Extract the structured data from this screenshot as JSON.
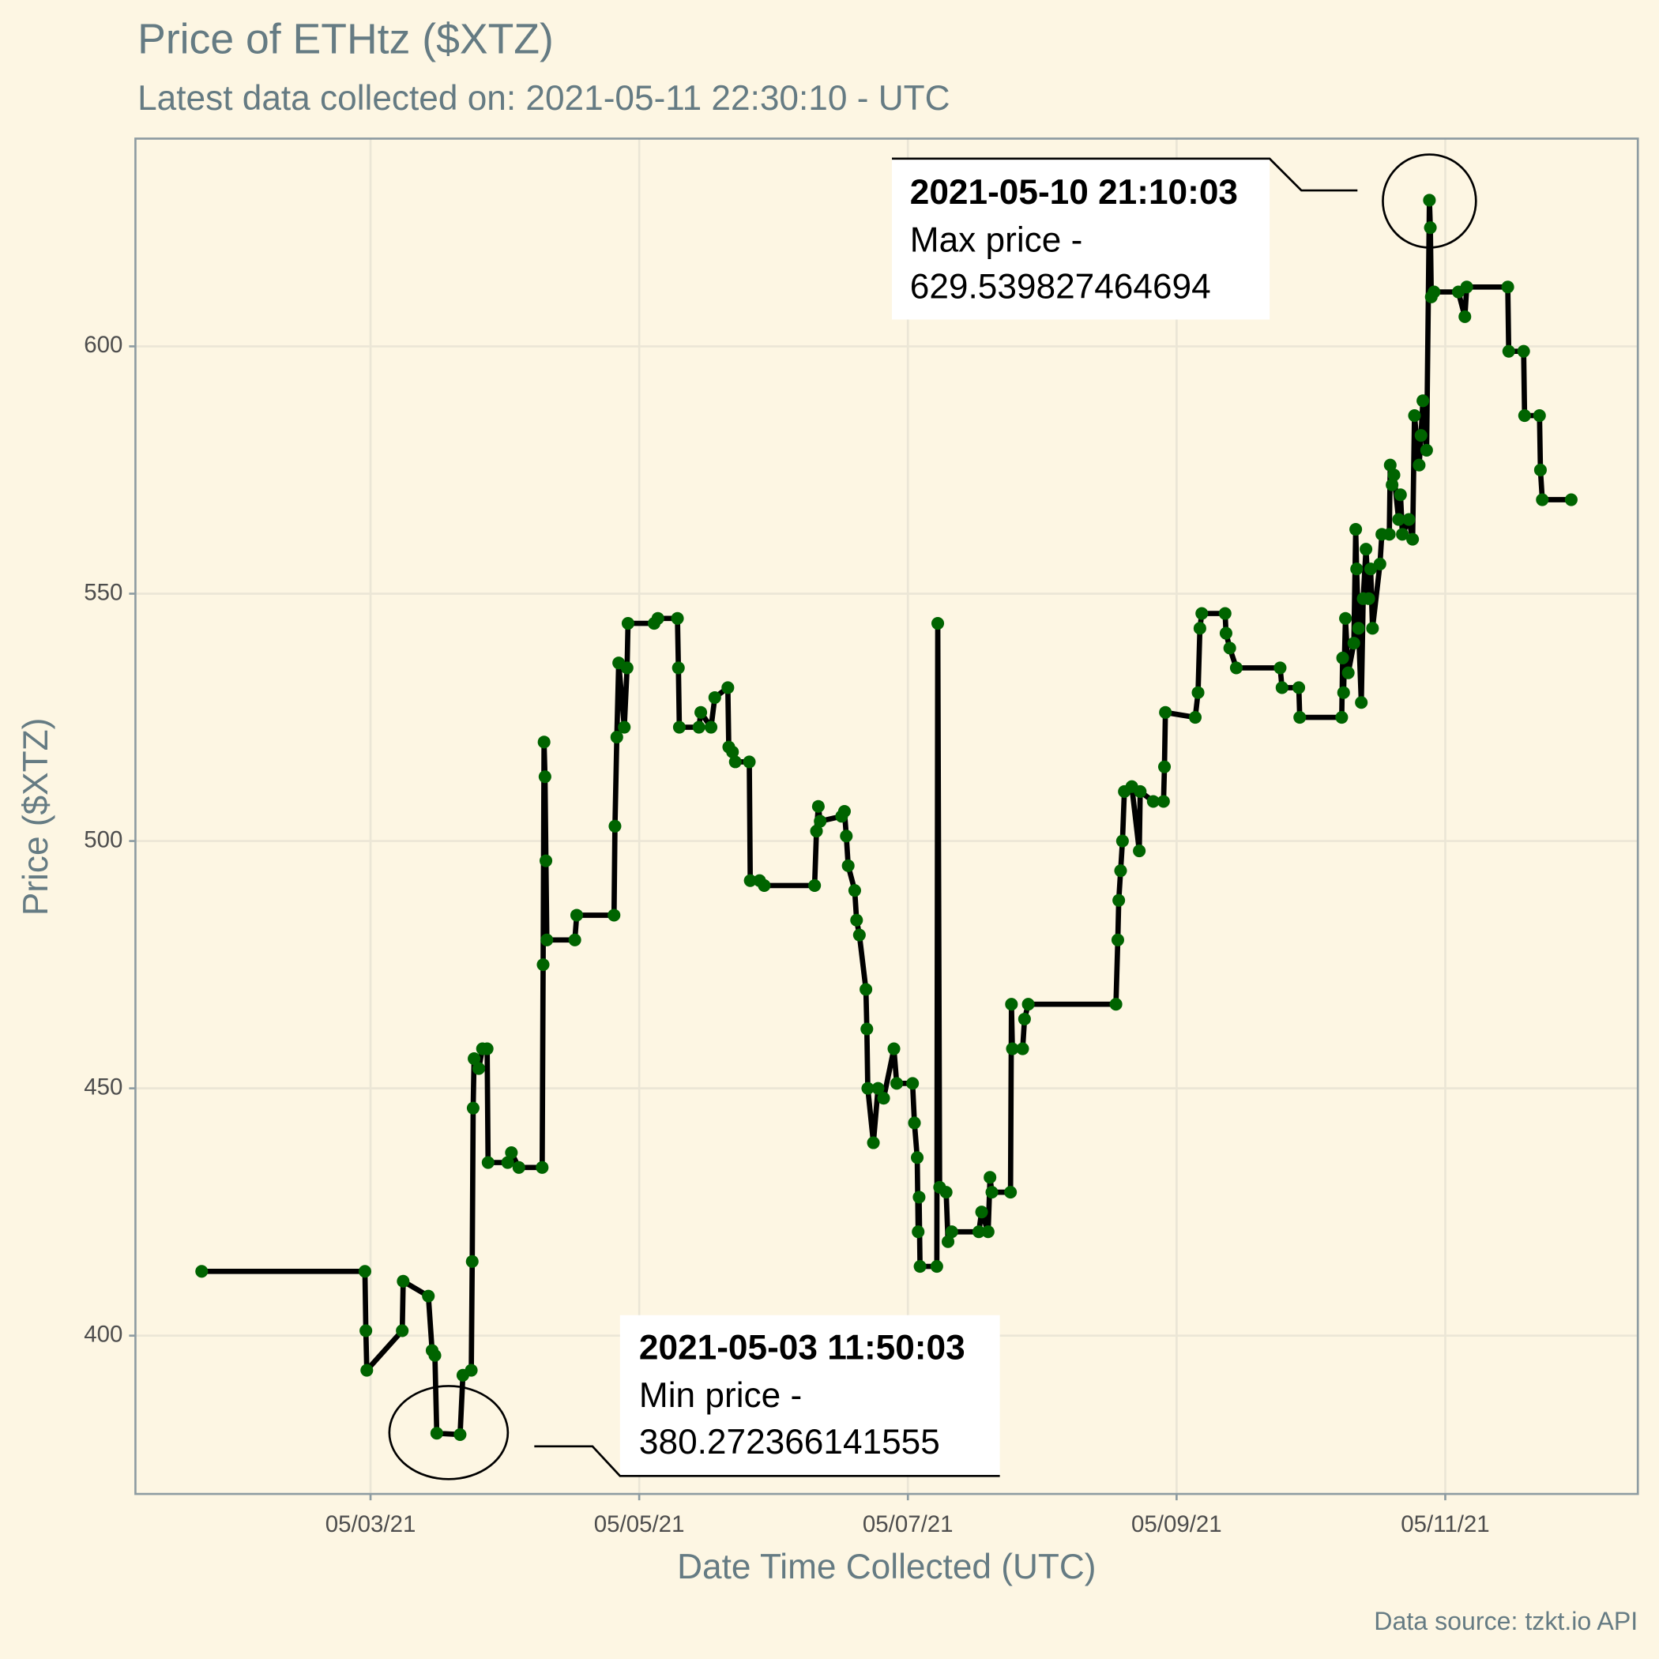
{
  "chart_data": {
    "type": "line",
    "title": "Price of ETHtz ($XTZ)",
    "subtitle": "Latest data collected on: 2021-05-11 22:30:10  - UTC",
    "x_label": "Date Time Collected (UTC)",
    "y_label": "Price ($XTZ)",
    "caption": "Data source: tzkt.io API",
    "grid": true,
    "xlim": [
      "2021-05-01T06:00",
      "2021-05-12T10:24"
    ],
    "xticks": [
      {
        "value": "2021-05-03T00:00",
        "label": "05/03/21"
      },
      {
        "value": "2021-05-05T00:00",
        "label": "05/05/21"
      },
      {
        "value": "2021-05-07T00:00",
        "label": "05/07/21"
      },
      {
        "value": "2021-05-09T00:00",
        "label": "05/09/21"
      },
      {
        "value": "2021-05-11T00:00",
        "label": "05/11/21"
      }
    ],
    "ylim": [
      368,
      642
    ],
    "yticks": [
      400,
      450,
      500,
      550,
      600
    ],
    "annotations": [
      {
        "title": "2021-05-10 21:10:03",
        "text": "Max price -",
        "value": "629.539827464694"
      },
      {
        "title": "2021-05-03 11:50:03",
        "text": "Min price -",
        "value": "380.272366141555"
      }
    ],
    "x": [
      "2021-05-01T17:50",
      "2021-05-02T23:00",
      "2021-05-02T23:10",
      "2021-05-02T23:20",
      "2021-05-03T05:40",
      "2021-05-03T05:50",
      "2021-05-03T10:20",
      "2021-05-03T11:00",
      "2021-05-03T11:30",
      "2021-05-03T11:50",
      "2021-05-03T16:00",
      "2021-05-03T16:30",
      "2021-05-03T18:00",
      "2021-05-03T18:10",
      "2021-05-03T18:20",
      "2021-05-03T18:30",
      "2021-05-03T19:20",
      "2021-05-03T20:00",
      "2021-05-03T20:50",
      "2021-05-03T21:00",
      "2021-05-04T00:30",
      "2021-05-04T01:10",
      "2021-05-04T02:30",
      "2021-05-04T06:40",
      "2021-05-04T06:50",
      "2021-05-04T07:00",
      "2021-05-04T07:10",
      "2021-05-04T07:20",
      "2021-05-04T07:30",
      "2021-05-04T12:30",
      "2021-05-04T12:50",
      "2021-05-04T19:30",
      "2021-05-04T19:40",
      "2021-05-04T20:00",
      "2021-05-04T20:20",
      "2021-05-04T21:20",
      "2021-05-04T21:50",
      "2021-05-04T22:00",
      "2021-05-05T02:40",
      "2021-05-05T03:20",
      "2021-05-05T06:50",
      "2021-05-05T07:00",
      "2021-05-05T07:10",
      "2021-05-05T10:40",
      "2021-05-05T11:00",
      "2021-05-05T12:50",
      "2021-05-05T13:30",
      "2021-05-05T15:50",
      "2021-05-05T16:00",
      "2021-05-05T16:40",
      "2021-05-05T17:10",
      "2021-05-05T19:40",
      "2021-05-05T19:50",
      "2021-05-05T21:30",
      "2021-05-05T22:20",
      "2021-05-06T07:20",
      "2021-05-06T07:40",
      "2021-05-06T08:00",
      "2021-05-06T08:20",
      "2021-05-06T12:10",
      "2021-05-06T12:40",
      "2021-05-06T13:00",
      "2021-05-06T13:20",
      "2021-05-06T14:30",
      "2021-05-06T14:50",
      "2021-05-06T15:20",
      "2021-05-06T16:30",
      "2021-05-06T16:40",
      "2021-05-06T16:50",
      "2021-05-06T17:50",
      "2021-05-06T18:40",
      "2021-05-06T19:40",
      "2021-05-06T21:30",
      "2021-05-06T22:00",
      "2021-05-07T00:50",
      "2021-05-07T01:10",
      "2021-05-07T01:40",
      "2021-05-07T01:50",
      "2021-05-07T02:00",
      "2021-05-07T02:10",
      "2021-05-07T05:10",
      "2021-05-07T05:20",
      "2021-05-07T05:40",
      "2021-05-07T06:50",
      "2021-05-07T07:10",
      "2021-05-07T07:50",
      "2021-05-07T12:40",
      "2021-05-07T13:10",
      "2021-05-07T14:20",
      "2021-05-07T14:40",
      "2021-05-07T15:00",
      "2021-05-07T18:20",
      "2021-05-07T18:30",
      "2021-05-07T18:40",
      "2021-05-07T20:30",
      "2021-05-07T20:50",
      "2021-05-07T21:30",
      "2021-05-08T13:10",
      "2021-05-08T13:30",
      "2021-05-08T13:40",
      "2021-05-08T14:00",
      "2021-05-08T14:20",
      "2021-05-08T14:40",
      "2021-05-08T16:00",
      "2021-05-08T17:20",
      "2021-05-08T17:30",
      "2021-05-08T19:50",
      "2021-05-08T21:40",
      "2021-05-08T21:50",
      "2021-05-08T22:00",
      "2021-05-09T03:20",
      "2021-05-09T03:50",
      "2021-05-09T04:10",
      "2021-05-09T04:30",
      "2021-05-09T08:40",
      "2021-05-09T08:50",
      "2021-05-09T09:30",
      "2021-05-09T10:40",
      "2021-05-09T18:30",
      "2021-05-09T18:50",
      "2021-05-09T21:50",
      "2021-05-09T22:00",
      "2021-05-10T05:30",
      "2021-05-10T05:40",
      "2021-05-10T05:50",
      "2021-05-10T06:10",
      "2021-05-10T06:40",
      "2021-05-10T07:40",
      "2021-05-10T08:00",
      "2021-05-10T08:10",
      "2021-05-10T08:30",
      "2021-05-10T09:00",
      "2021-05-10T09:20",
      "2021-05-10T09:50",
      "2021-05-10T10:20",
      "2021-05-10T10:40",
      "2021-05-10T11:00",
      "2021-05-10T12:20",
      "2021-05-10T12:40",
      "2021-05-10T14:00",
      "2021-05-10T14:10",
      "2021-05-10T14:30",
      "2021-05-10T14:50",
      "2021-05-10T15:40",
      "2021-05-10T16:00",
      "2021-05-10T16:20",
      "2021-05-10T17:30",
      "2021-05-10T18:10",
      "2021-05-10T18:30",
      "2021-05-10T19:20",
      "2021-05-10T19:40",
      "2021-05-10T20:00",
      "2021-05-10T20:40",
      "2021-05-10T21:10",
      "2021-05-10T21:20",
      "2021-05-10T21:30",
      "2021-05-10T22:00",
      "2021-05-11T02:20",
      "2021-05-11T03:30",
      "2021-05-11T03:50",
      "2021-05-11T11:10",
      "2021-05-11T11:20",
      "2021-05-11T14:00",
      "2021-05-11T14:10",
      "2021-05-11T16:50",
      "2021-05-11T17:00",
      "2021-05-11T17:20",
      "2021-05-11T22:30"
    ],
    "series": [
      {
        "name": "Price",
        "color": "#006400",
        "line_color": "#000000",
        "values": [
          413,
          413,
          401,
          393,
          401,
          411,
          408,
          397,
          396,
          380.272366141555,
          380,
          392,
          393,
          415,
          446,
          456,
          454,
          458,
          458,
          435,
          435,
          437,
          434,
          434,
          475,
          520,
          513,
          496,
          480,
          480,
          485,
          485,
          503,
          521,
          536,
          523,
          535,
          544,
          544,
          545,
          545,
          535,
          523,
          523,
          526,
          523,
          529,
          531,
          519,
          518,
          516,
          516,
          492,
          492,
          491,
          491,
          502,
          507,
          504,
          505,
          506,
          501,
          495,
          490,
          484,
          481,
          470,
          462,
          450,
          439,
          450,
          448,
          458,
          451,
          451,
          443,
          436,
          421,
          428,
          414,
          414,
          544,
          430,
          429,
          419,
          421,
          421,
          425,
          421,
          432,
          429,
          429,
          467,
          458,
          458,
          464,
          467,
          467,
          480,
          488,
          494,
          500,
          510,
          511,
          498,
          510,
          508,
          508,
          515,
          526,
          525,
          530,
          543,
          546,
          546,
          542,
          539,
          535,
          535,
          531,
          531,
          525,
          525,
          537,
          530,
          545,
          534,
          540,
          563,
          555,
          543,
          528,
          549,
          559,
          549,
          555,
          543,
          556,
          562,
          562,
          576,
          572,
          574,
          565,
          570,
          562,
          565,
          561,
          586,
          576,
          582,
          589,
          579,
          629.539827464694,
          624,
          610,
          611,
          611,
          606,
          612,
          612,
          599,
          599,
          586,
          586,
          575,
          569,
          569
        ]
      }
    ]
  }
}
